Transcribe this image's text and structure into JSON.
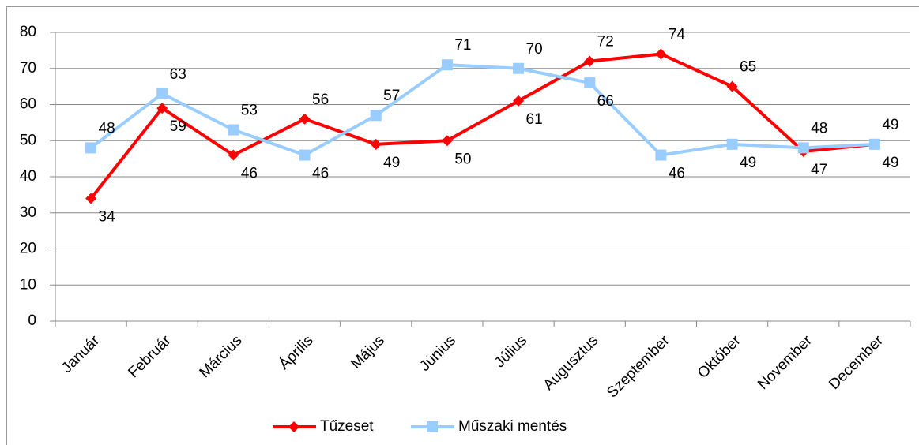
{
  "chart_data": {
    "type": "line",
    "categories": [
      "Január",
      "Február",
      "Március",
      "Április",
      "Május",
      "Június",
      "Július",
      "Augusztus",
      "Szeptember",
      "Október",
      "November",
      "December"
    ],
    "series": [
      {
        "name": "Tűzeset",
        "color": "#ff0000",
        "marker": "diamond",
        "values": [
          34,
          59,
          46,
          56,
          49,
          50,
          61,
          72,
          74,
          65,
          47,
          49
        ]
      },
      {
        "name": "Műszaki mentés",
        "color": "#99ccff",
        "marker": "square",
        "values": [
          48,
          63,
          53,
          46,
          57,
          71,
          70,
          66,
          46,
          49,
          48,
          49
        ]
      }
    ],
    "ylim": [
      0,
      80
    ],
    "yticks": [
      0,
      10,
      20,
      30,
      40,
      50,
      60,
      70,
      80
    ],
    "grid": true,
    "legend": "bottom"
  }
}
